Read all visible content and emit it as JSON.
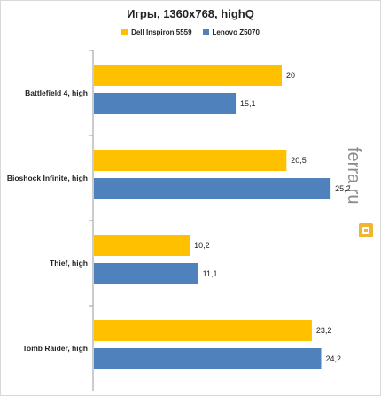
{
  "chart_data": {
    "type": "bar",
    "orientation": "horizontal",
    "title": "Игры, 1360x768, highQ",
    "categories": [
      "Battlefield 4, high",
      "Bioshock Infinite, high",
      "Thief, high",
      "Tomb Raider, high"
    ],
    "series": [
      {
        "name": "Dell Inspiron 5559",
        "color": "#FFC000",
        "values": [
          20,
          20.5,
          10.2,
          23.2
        ],
        "labels": [
          "20",
          "20,5",
          "10,2",
          "23,2"
        ]
      },
      {
        "name": "Lenovo Z5070",
        "color": "#4F81BD",
        "values": [
          15.1,
          25.2,
          11.1,
          24.2
        ],
        "labels": [
          "15,1",
          "25,2",
          "11,1",
          "24,2"
        ]
      }
    ],
    "xlim": [
      0,
      27.5
    ],
    "grid": false,
    "legend_position": "top"
  },
  "watermark": {
    "text": "ferra.ru",
    "icon": "ferra-logo-icon",
    "color": "#F0B532"
  }
}
